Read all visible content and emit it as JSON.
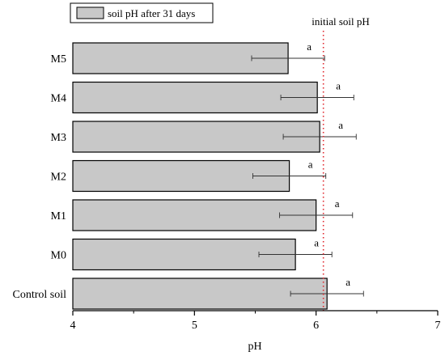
{
  "chart_data": {
    "type": "bar",
    "orientation": "horizontal",
    "categories": [
      "M5",
      "M4",
      "M3",
      "M2",
      "M1",
      "M0",
      "Control soil"
    ],
    "series": [
      {
        "name": "soil pH after 31 days",
        "values": [
          5.77,
          6.01,
          6.03,
          5.78,
          6.0,
          5.83,
          6.09
        ],
        "error": [
          0.3,
          0.3,
          0.3,
          0.3,
          0.3,
          0.3,
          0.3
        ],
        "significance": [
          "a",
          "a",
          "a",
          "a",
          "a",
          "a",
          "a"
        ],
        "color": "#c8c8c8"
      }
    ],
    "reference_line": {
      "label": "initial soil pH",
      "value": 6.06,
      "color": "#e0262c",
      "style": "dotted"
    },
    "xlabel": "pH",
    "ylabel": "",
    "xlim": [
      4,
      7
    ],
    "xticks": [
      "4",
      "5",
      "6",
      "7"
    ],
    "grid": false,
    "legend_position": "top-left"
  }
}
